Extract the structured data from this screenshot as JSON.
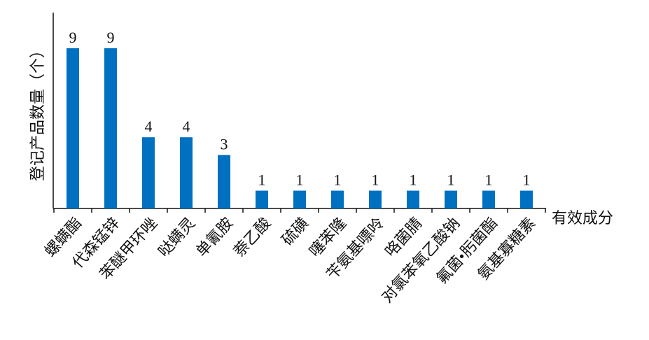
{
  "chart_data": {
    "type": "bar",
    "y_label": "登记产品数量（个）",
    "x_label": "有效成分",
    "categories": [
      "螺螨酯",
      "代森锰锌",
      "苯醚甲环唑",
      "哒螨灵",
      "单氰胺",
      "萘乙酸",
      "硫磺",
      "噻苯隆",
      "苄氨基嘌呤",
      "咯菌腈",
      "对氯苯氧乙酸钠",
      "氟菌•肟菌酯",
      "氨基寡糖素"
    ],
    "values": [
      9,
      9,
      4,
      4,
      3,
      1,
      1,
      1,
      1,
      1,
      1,
      1,
      1
    ],
    "color": "#0070c0",
    "ylim": [
      0,
      11
    ]
  }
}
